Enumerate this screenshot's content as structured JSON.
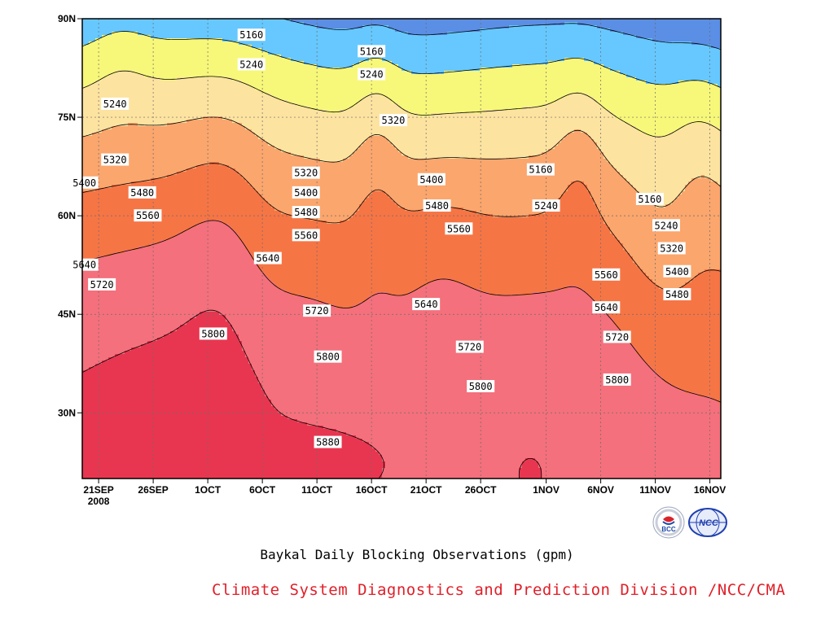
{
  "colors": {
    "levels_fill": [
      "#0f1a6e",
      "#1b2ee0",
      "#4558ec",
      "#5b8ee5",
      "#66c8ff",
      "#f7f77a",
      "#fde3a0",
      "#fba66d",
      "#f67545",
      "#f4707c",
      "#e83650"
    ],
    "credit": "#e0202a",
    "frame": "#000000"
  },
  "chart_data": {
    "type": "heatmap",
    "title": "Baykal Daily Blocking Observations (gpm)",
    "x_ticks": [
      {
        "label": "21SEP",
        "sublabel": "2008",
        "day": 0
      },
      {
        "label": "26SEP",
        "day": 5
      },
      {
        "label": "1OCT",
        "day": 10
      },
      {
        "label": "6OCT",
        "day": 15
      },
      {
        "label": "11OCT",
        "day": 20
      },
      {
        "label": "16OCT",
        "day": 25
      },
      {
        "label": "21OCT",
        "day": 30
      },
      {
        "label": "26OCT",
        "day": 35
      },
      {
        "label": "1NOV",
        "day": 41
      },
      {
        "label": "6NOV",
        "day": 46
      },
      {
        "label": "11NOV",
        "day": 51
      },
      {
        "label": "16NOV",
        "day": 56
      }
    ],
    "x_range": [
      -1.5,
      57
    ],
    "y_ticks": [
      {
        "label": "30N",
        "lat": 30
      },
      {
        "label": "45N",
        "lat": 45
      },
      {
        "label": "60N",
        "lat": 60
      },
      {
        "label": "75N",
        "lat": 75
      },
      {
        "label": "90N",
        "lat": 90
      }
    ],
    "y_range": [
      20,
      90
    ],
    "contour_levels": [
      5160,
      5240,
      5320,
      5400,
      5480,
      5560,
      5640,
      5720,
      5800,
      5880
    ],
    "contour_labels": [
      {
        "text": "5160",
        "day": 14,
        "lat": 87.5
      },
      {
        "text": "5240",
        "day": 14,
        "lat": 83
      },
      {
        "text": "5240",
        "day": 1.5,
        "lat": 77
      },
      {
        "text": "5160",
        "day": 25,
        "lat": 85
      },
      {
        "text": "5240",
        "day": 25,
        "lat": 81.5
      },
      {
        "text": "5320",
        "day": 27,
        "lat": 74.5
      },
      {
        "text": "5320",
        "day": 1.5,
        "lat": 68.5
      },
      {
        "text": "5400",
        "day": -1.3,
        "lat": 65
      },
      {
        "text": "5480",
        "day": 4,
        "lat": 63.5
      },
      {
        "text": "5560",
        "day": 4.5,
        "lat": 60
      },
      {
        "text": "5640",
        "day": -1.3,
        "lat": 52.5
      },
      {
        "text": "5720",
        "day": 0.3,
        "lat": 49.5
      },
      {
        "text": "5320",
        "day": 19,
        "lat": 66.5
      },
      {
        "text": "5400",
        "day": 19,
        "lat": 63.5
      },
      {
        "text": "5480",
        "day": 19,
        "lat": 60.5
      },
      {
        "text": "5560",
        "day": 19,
        "lat": 57
      },
      {
        "text": "5640",
        "day": 15.5,
        "lat": 53.5
      },
      {
        "text": "5720",
        "day": 20,
        "lat": 45.5
      },
      {
        "text": "5800",
        "day": 10.5,
        "lat": 42
      },
      {
        "text": "5800",
        "day": 21,
        "lat": 38.5
      },
      {
        "text": "5880",
        "day": 21,
        "lat": 25.5
      },
      {
        "text": "5400",
        "day": 30.5,
        "lat": 65.5
      },
      {
        "text": "5480",
        "day": 31,
        "lat": 61.5
      },
      {
        "text": "5560",
        "day": 33,
        "lat": 58
      },
      {
        "text": "5640",
        "day": 30,
        "lat": 46.5
      },
      {
        "text": "5720",
        "day": 34,
        "lat": 40
      },
      {
        "text": "5800",
        "day": 35,
        "lat": 34
      },
      {
        "text": "5160",
        "day": 40.5,
        "lat": 67
      },
      {
        "text": "5240",
        "day": 41,
        "lat": 61.5
      },
      {
        "text": "5160",
        "day": 50.5,
        "lat": 62.5
      },
      {
        "text": "5240",
        "day": 52,
        "lat": 58.5
      },
      {
        "text": "5320",
        "day": 52.5,
        "lat": 55
      },
      {
        "text": "5400",
        "day": 53,
        "lat": 51.5
      },
      {
        "text": "5480",
        "day": 53,
        "lat": 48
      },
      {
        "text": "5560",
        "day": 46.5,
        "lat": 51
      },
      {
        "text": "5640",
        "day": 46.5,
        "lat": 46
      },
      {
        "text": "5720",
        "day": 47.5,
        "lat": 41.5
      },
      {
        "text": "5800",
        "day": 47.5,
        "lat": 35
      }
    ],
    "grid": true
  },
  "footer": {
    "credit": "Climate System Diagnostics and Prediction Division /NCC/CMA",
    "logo_left_text": "BCC",
    "logo_right_text": "NCC"
  }
}
